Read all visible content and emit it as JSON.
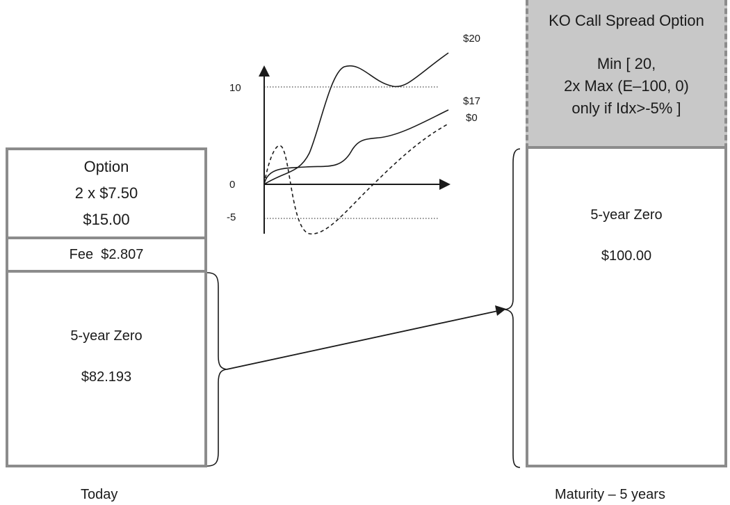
{
  "chart": {
    "y_ticks": [
      "10",
      "0",
      "-5"
    ],
    "series_labels": [
      "$20",
      "$17",
      "$0"
    ]
  },
  "today": {
    "option_title": "Option",
    "option_line2": "2 x $7.50",
    "option_value": "$15.00",
    "fee": "Fee  $2.807",
    "zero_title": "5-year Zero",
    "zero_value": "$82.193",
    "label": "Today"
  },
  "maturity": {
    "ko_title": "KO Call Spread Option",
    "ko_formula_line1": "Min [ 20,",
    "ko_formula_line2": "2x Max (E–100, 0)",
    "ko_formula_line3": "only if Idx>-5% ]",
    "zero_title": "5-year Zero",
    "zero_value": "$100.00",
    "label": "Maturity – 5 years"
  },
  "colors": {
    "box_border": "#8c8c8c",
    "ko_fill": "#c8c8c8",
    "line": "#1a1a1a"
  }
}
